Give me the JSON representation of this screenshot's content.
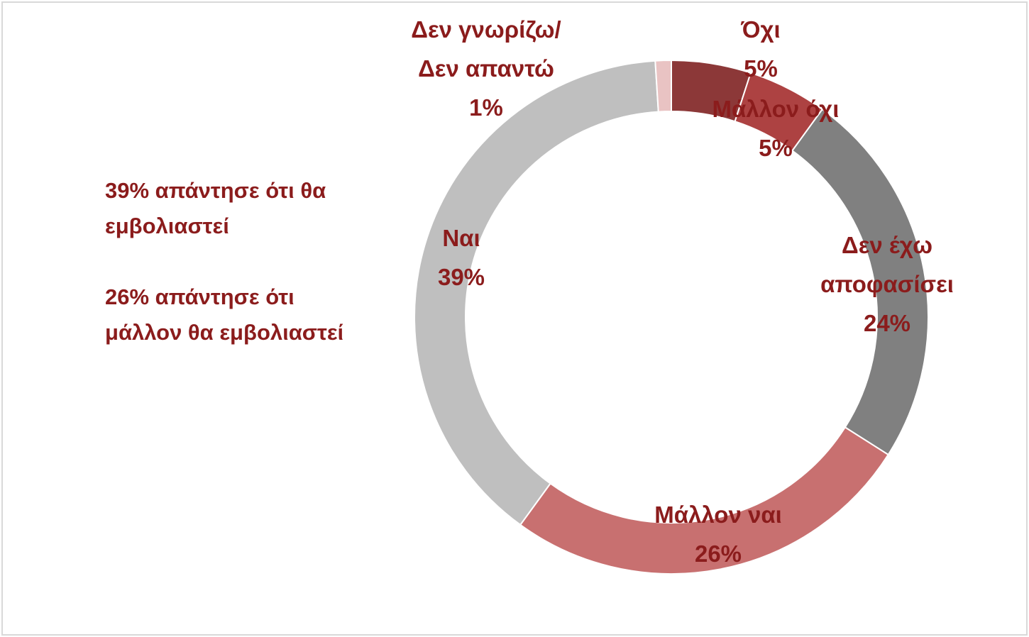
{
  "chart_data": {
    "type": "donut",
    "categories": [
      "Όχι",
      "Μάλλον όχι",
      "Δεν έχω αποφασίσει",
      "Μάλλον ναι",
      "Ναι",
      "Δεν γνωρίζω/Δεν απαντώ"
    ],
    "values": [
      5,
      5,
      24,
      26,
      39,
      1
    ],
    "value_labels": [
      "5%",
      "5%",
      "24%",
      "26%",
      "39%",
      "1%"
    ],
    "colors": [
      "#8c3838",
      "#ad4242",
      "#808080",
      "#c87070",
      "#bfbfbf",
      "#e9c3c3"
    ],
    "annotations": [
      "39% απάντησε ότι θα εμβολιαστεί",
      "26% απάντησε ότι μάλλον θα εμβολιαστεί"
    ]
  }
}
